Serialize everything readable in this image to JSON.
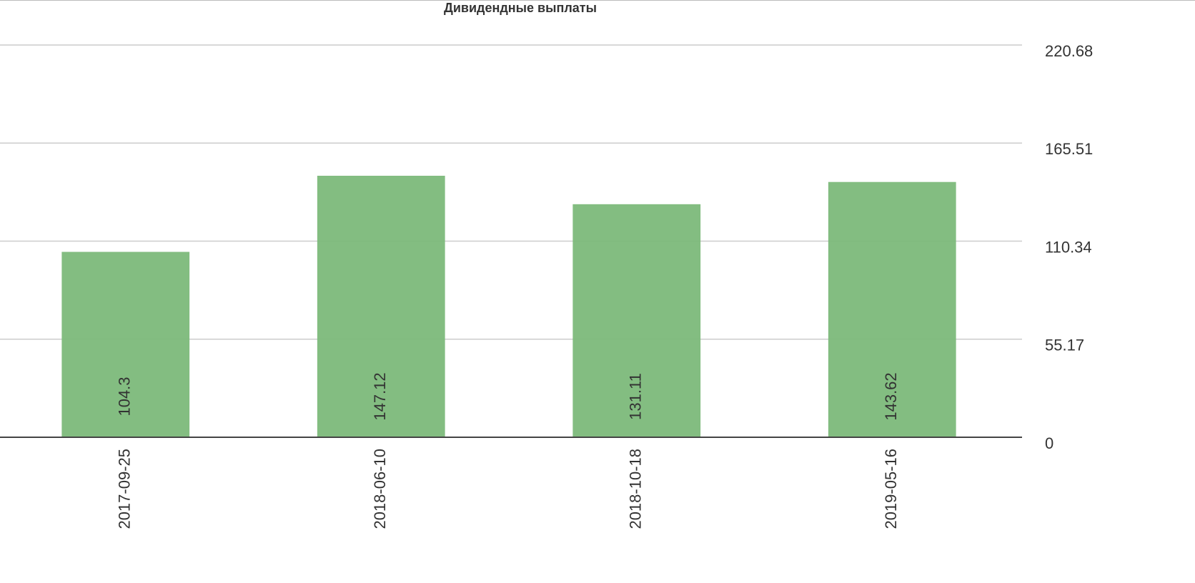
{
  "chart_data": {
    "type": "bar",
    "title": "Дивидендные выплаты",
    "categories": [
      "2017-09-25",
      "2018-06-10",
      "2018-10-18",
      "2019-05-16"
    ],
    "values": [
      104.3,
      147.12,
      131.11,
      143.62
    ],
    "color": "#7cb97a",
    "ylim": [
      0,
      220.68
    ],
    "yticks": [
      0,
      55.17,
      110.34,
      165.51,
      220.68
    ],
    "grid": true
  }
}
